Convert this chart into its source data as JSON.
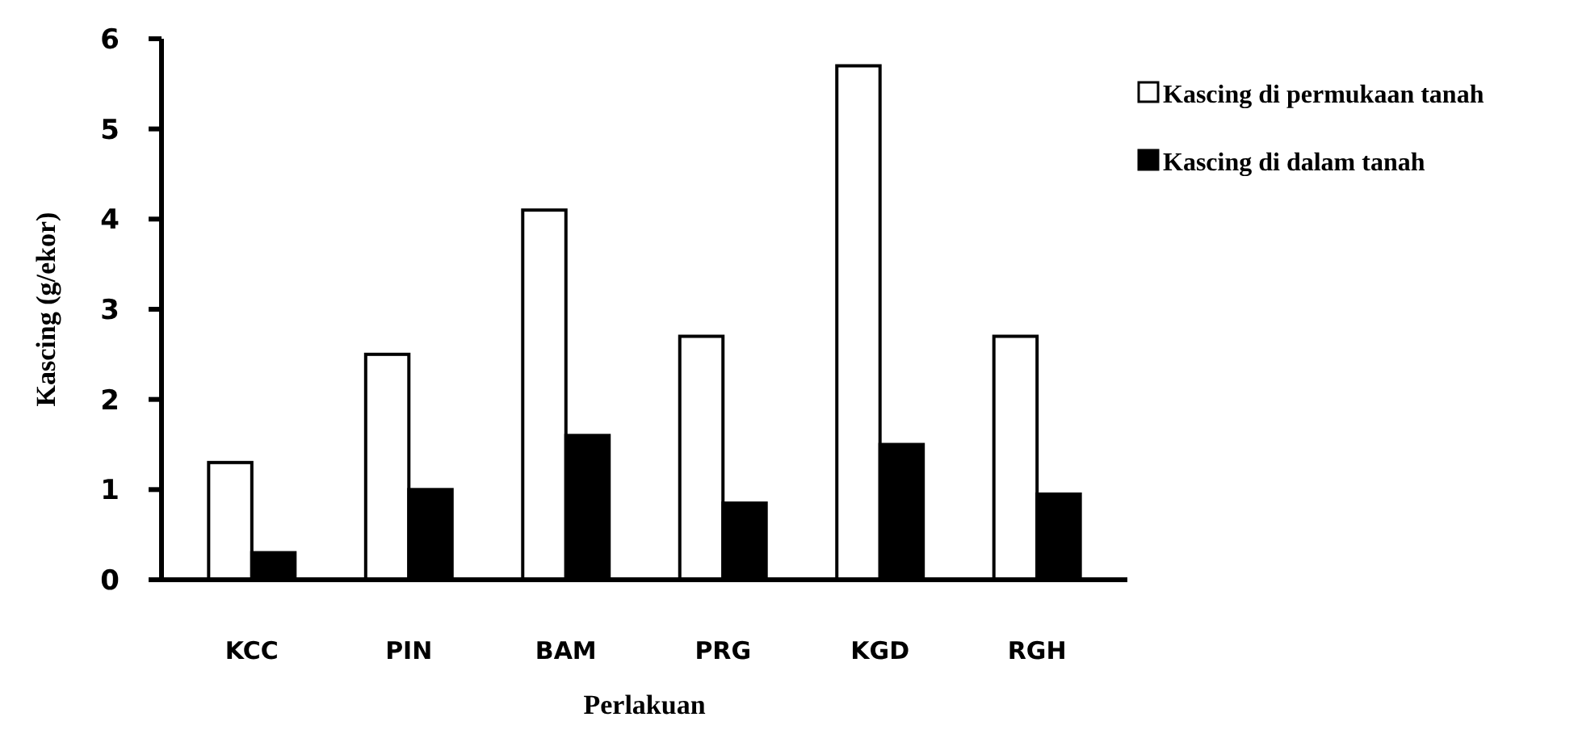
{
  "chart_data": {
    "type": "bar",
    "xlabel": "Perlakuan",
    "ylabel": "Kascing (g/ekor)",
    "categories": [
      "KCC",
      "PIN",
      "BAM",
      "PRG",
      "KGD",
      "RGH"
    ],
    "series": [
      {
        "name": "Kascing di permukaan tanah",
        "color": "#ffffff",
        "values": [
          1.3,
          2.5,
          4.1,
          2.7,
          5.7,
          2.7
        ]
      },
      {
        "name": "Kascing di dalam tanah",
        "color": "#000000",
        "values": [
          0.3,
          1.0,
          1.6,
          0.85,
          1.5,
          0.95
        ]
      }
    ],
    "ylim": [
      0,
      6
    ],
    "yticks": [
      0,
      1,
      2,
      3,
      4,
      5,
      6
    ],
    "grid": false,
    "legend": "right"
  }
}
